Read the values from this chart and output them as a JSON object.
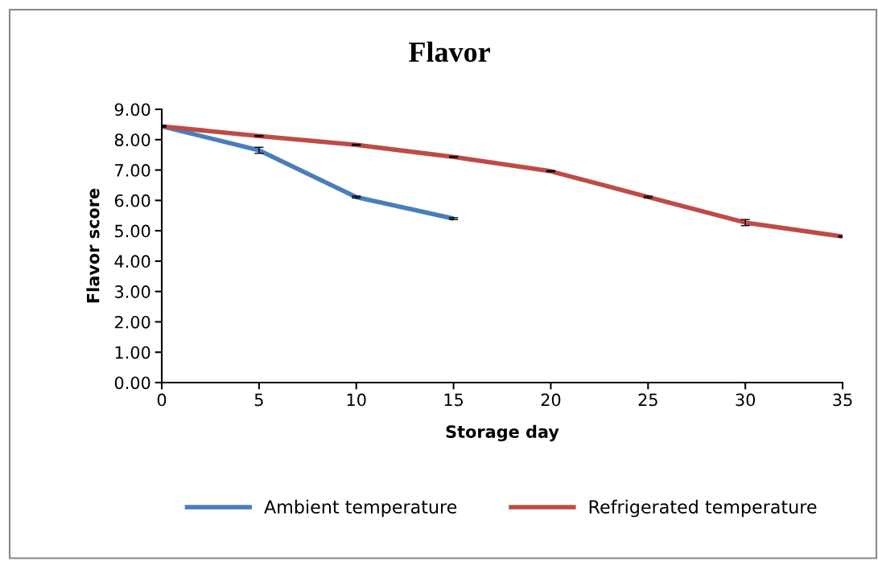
{
  "chart_data": {
    "type": "line",
    "title": "Flavor",
    "xlabel": "Storage day",
    "ylabel": "Flavor score",
    "xlim": [
      0,
      35
    ],
    "xticks": [
      0,
      5,
      10,
      15,
      20,
      25,
      30,
      35
    ],
    "ylim": [
      0,
      9
    ],
    "yticks": [
      {
        "value": 0,
        "label": "0.00"
      },
      {
        "value": 1,
        "label": "1.00"
      },
      {
        "value": 2,
        "label": "2.00"
      },
      {
        "value": 3,
        "label": "3.00"
      },
      {
        "value": 4,
        "label": "4.00"
      },
      {
        "value": 5,
        "label": "5.00"
      },
      {
        "value": 6,
        "label": "6.00"
      },
      {
        "value": 7,
        "label": "7.00"
      },
      {
        "value": 8,
        "label": "8.00"
      },
      {
        "value": 9,
        "label": "9.00"
      }
    ],
    "grid": false,
    "legend": "bottom",
    "marker": "none",
    "line_style": "solid",
    "series": [
      {
        "name": "Ambient temperature",
        "color": "#4a7ebb",
        "x": [
          0,
          5,
          10,
          15
        ],
        "values": [
          8.44,
          7.65,
          6.11,
          5.4
        ],
        "errors": [
          0.02,
          0.1,
          0.03,
          0.03
        ]
      },
      {
        "name": "Refrigerated temperature",
        "color": "#be4b48",
        "x": [
          0,
          5,
          10,
          15,
          20,
          25,
          30,
          35
        ],
        "values": [
          8.44,
          8.12,
          7.83,
          7.43,
          6.96,
          6.11,
          5.27,
          4.81
        ],
        "errors": [
          0.02,
          0.02,
          0.02,
          0.02,
          0.02,
          0.03,
          0.1,
          0.02
        ]
      }
    ]
  }
}
